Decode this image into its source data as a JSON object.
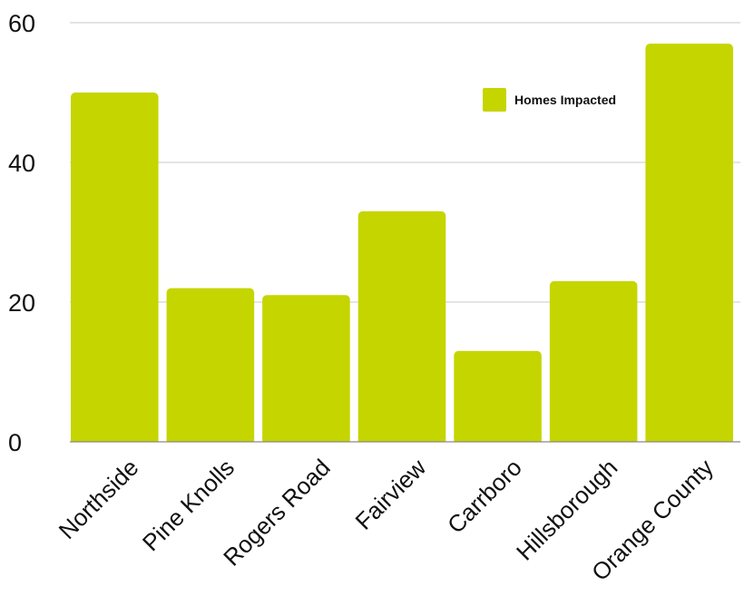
{
  "chart_data": {
    "type": "bar",
    "categories": [
      "Northside",
      "Pine Knolls",
      "Rogers Road",
      "Fairview",
      "Carrboro",
      "Hillsborough",
      "Orange County"
    ],
    "series": [
      {
        "name": "Homes Impacted",
        "values": [
          50,
          22,
          21,
          33,
          13,
          23,
          57
        ],
        "color": "#c5d500"
      }
    ],
    "yticks": [
      0,
      20,
      40,
      60
    ],
    "ylim": [
      0,
      60
    ],
    "grid": true,
    "legend": "top-right",
    "title": "",
    "xlabel": "",
    "ylabel": ""
  }
}
